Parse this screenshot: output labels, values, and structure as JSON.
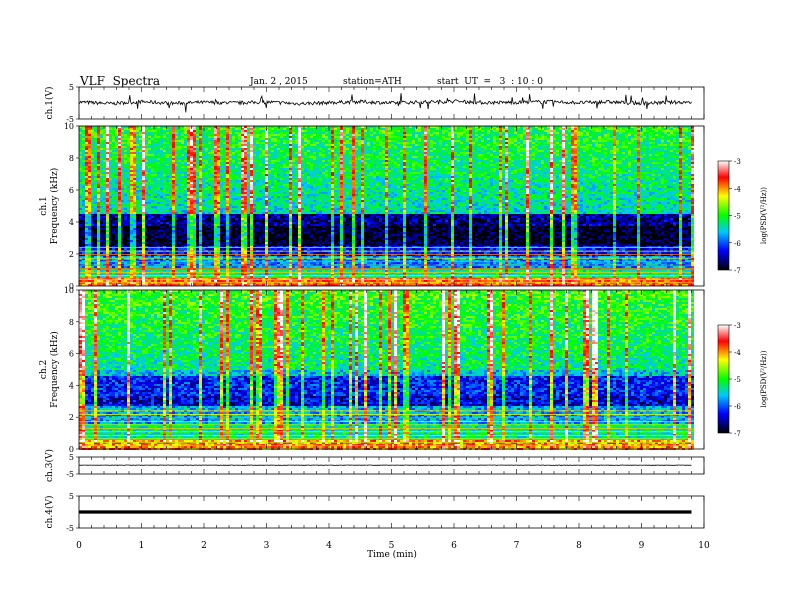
{
  "header": {
    "title": "VLF  Spectra",
    "date": "Jan. 2 , 2015",
    "station": "station=ATH",
    "start": "start  UT  =   3  : 10 : 0"
  },
  "chart_data": [
    {
      "type": "line",
      "panel": "ch1-waveform",
      "ylabel": "ch.1(V)",
      "yticks": [
        "5",
        "-5"
      ],
      "ylim": [
        -5,
        5
      ],
      "x": [
        0,
        0.5,
        1,
        1.5,
        2,
        2.5,
        3,
        3.5,
        4,
        4.5,
        5,
        5.5,
        6,
        6.5,
        7,
        7.5,
        8,
        8.5,
        9,
        9.5,
        9.8
      ],
      "values": [
        0.3,
        -0.2,
        0.4,
        -0.1,
        0.2,
        0.0,
        0.3,
        -0.2,
        0.1,
        0.4,
        0.0,
        0.3,
        0.5,
        0.1,
        0.2,
        0.4,
        0.1,
        0.3,
        -0.1,
        0.2,
        0.3
      ]
    },
    {
      "type": "heatmap",
      "panel": "ch1-spectrogram",
      "ylabel": "ch.1",
      "ylabel2": "Frequency  (kHz)",
      "yticks": [
        "10",
        "8",
        "6",
        "4",
        "2",
        "0"
      ],
      "ylim": [
        0,
        10
      ],
      "colorbar": {
        "label": "log(PSD(V²/Hz))",
        "ticks": [
          "-3",
          "-4",
          "-5",
          "-6",
          "-7"
        ],
        "range": [
          -7,
          -3
        ]
      },
      "bands_khz": [
        0,
        0.6,
        1.2,
        2,
        2.6,
        3.8,
        4.6,
        10
      ],
      "band_level": [
        -3.8,
        -5.3,
        -5.8,
        -6.3,
        -6.9,
        -6.6,
        -5.4
      ]
    },
    {
      "type": "heatmap",
      "panel": "ch2-spectrogram",
      "ylabel": "ch.2",
      "ylabel2": "Frequency  (kHz)",
      "yticks": [
        "10",
        "8",
        "6",
        "4",
        "2",
        "0"
      ],
      "ylim": [
        0,
        10
      ],
      "colorbar": {
        "label": "log(PSD(V²/Hz))",
        "ticks": [
          "-3",
          "-4",
          "-5",
          "-6",
          "-7"
        ],
        "range": [
          -7,
          -3
        ]
      },
      "bands_khz": [
        0,
        0.6,
        1.6,
        2.8,
        3.4,
        4.6,
        5,
        10
      ],
      "band_level": [
        -4.0,
        -5.3,
        -5.7,
        -6.4,
        -6.2,
        -5.6,
        -5.3
      ]
    },
    {
      "type": "line",
      "panel": "ch3-waveform",
      "ylabel": "ch.3(V)",
      "yticks": [
        "5",
        "-5"
      ],
      "ylim": [
        -5,
        5
      ],
      "x": [
        0,
        9.8
      ],
      "values": [
        0.2,
        0.2
      ]
    },
    {
      "type": "line",
      "panel": "ch4-waveform",
      "ylabel": "ch.4(V)",
      "yticks": [
        "5",
        "-5"
      ],
      "ylim": [
        -5,
        5
      ],
      "x": [
        0,
        9.8
      ],
      "values": [
        0.0,
        0.0
      ]
    }
  ],
  "xaxis": {
    "label": "Time  (min)",
    "ticks": [
      "0",
      "1",
      "2",
      "3",
      "4",
      "5",
      "6",
      "7",
      "8",
      "9",
      "10"
    ],
    "xlim": [
      0,
      10
    ],
    "data_end_min": 9.8
  },
  "colors": {
    "scale": [
      "#000000",
      "#0000ff",
      "#00ffff",
      "#00ff00",
      "#ffff00",
      "#ff0000",
      "#ffffff"
    ]
  }
}
